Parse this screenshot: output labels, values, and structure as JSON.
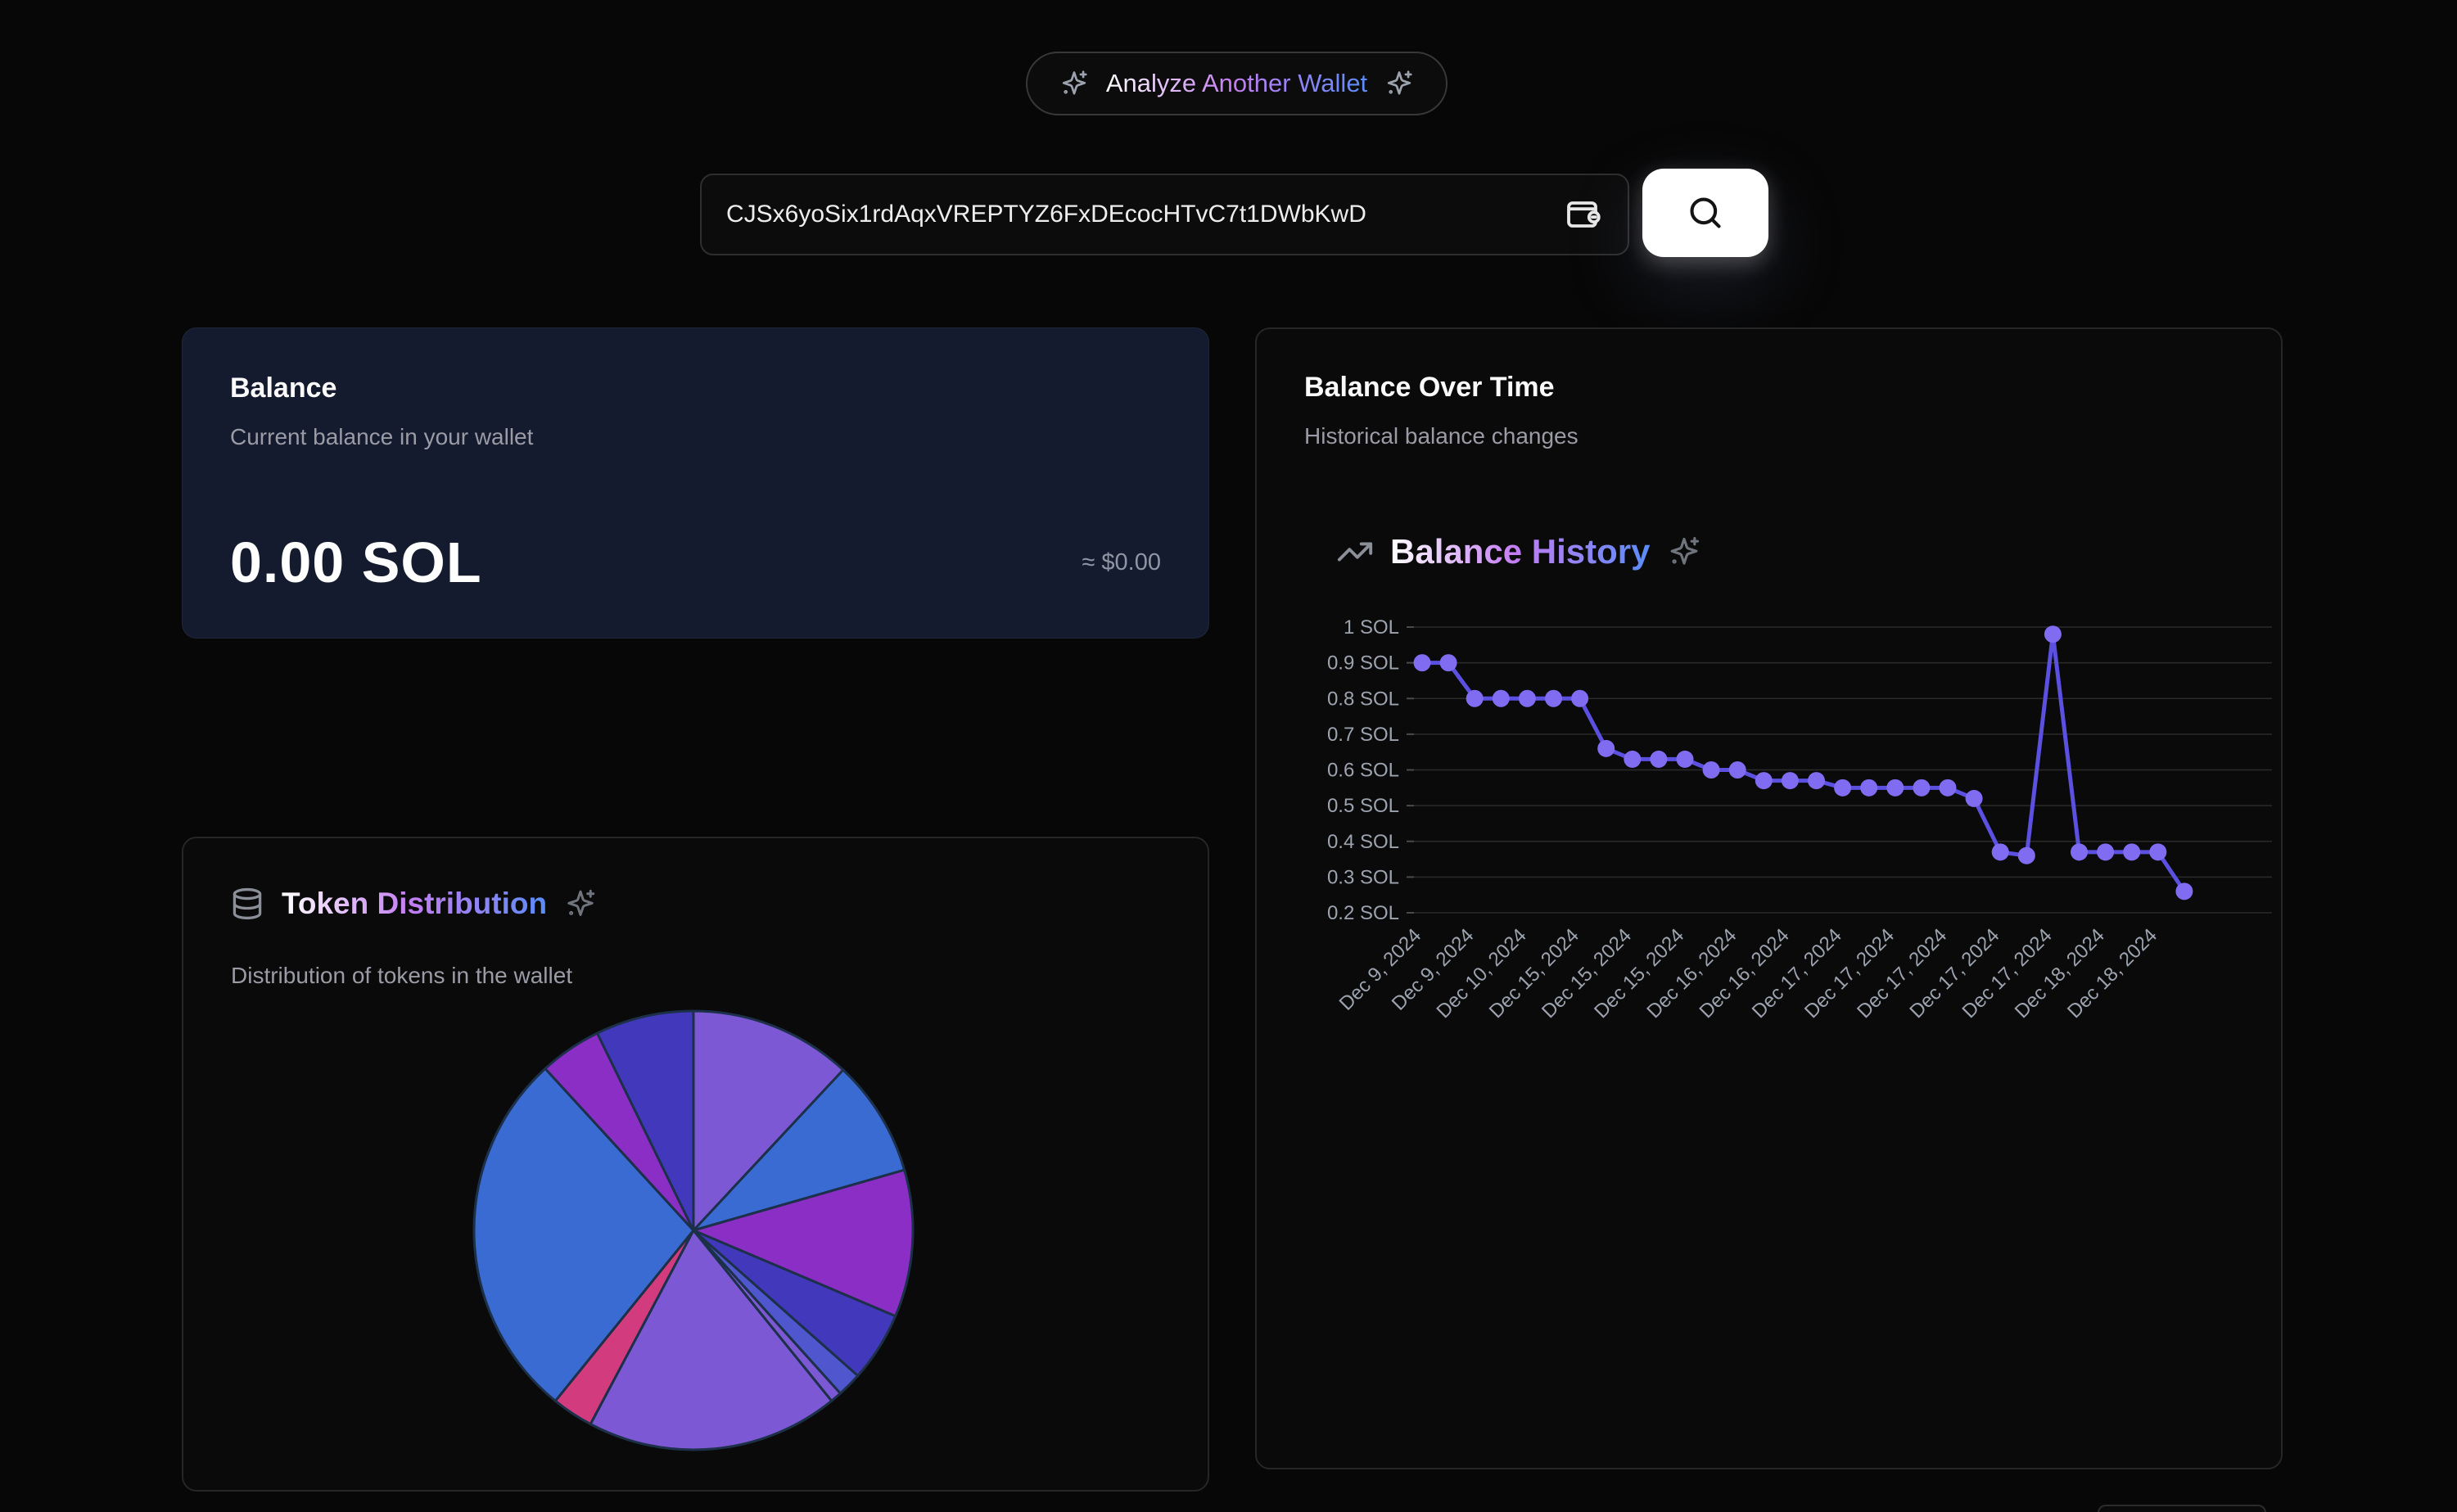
{
  "topbar": {
    "analyze_button_label": "Analyze Another Wallet",
    "left_icon": "sparkles-icon",
    "right_icon": "sparkles-icon"
  },
  "search": {
    "address_value": "CJSx6yoSix1rdAqxVREPTYZ6FxDEcocHTvC7t1DWbKwD",
    "field_icon": "wallet-icon",
    "button_icon": "search-icon"
  },
  "balance_card": {
    "title": "Balance",
    "subtitle": "Current balance in your wallet",
    "amount": "0.00 SOL",
    "usd_equiv": "≈ $0.00",
    "bg_color": "#141b2e"
  },
  "history_card": {
    "title": "Balance Over Time",
    "subtitle": "Historical balance changes",
    "chart_title": "Balance History",
    "chart_title_left_icon": "trending-up-icon",
    "chart_title_right_icon": "sparkles-icon"
  },
  "token_card": {
    "title": "Token Distribution",
    "subtitle": "Distribution of tokens in the wallet",
    "title_left_icon": "database-icon",
    "title_right_icon": "sparkles-icon"
  },
  "colors": {
    "page_bg": "#070707",
    "card_bg": "#0a0a0a",
    "card_border": "#262626",
    "accent_gradient": [
      "#ffffff",
      "#c47df2",
      "#5a8cf8"
    ],
    "muted_text": "#9b9ba6"
  },
  "chart_data": [
    {
      "type": "line",
      "title": "Balance History",
      "xlabel": "",
      "ylabel": "",
      "ylim": [
        0.2,
        1.0
      ],
      "grid": true,
      "legend": "none",
      "yticks": [
        {
          "value": 1,
          "label": "1 SOL"
        },
        {
          "value": 0.9,
          "label": "0.9 SOL"
        },
        {
          "value": 0.8,
          "label": "0.8 SOL"
        },
        {
          "value": 0.7,
          "label": "0.7 SOL"
        },
        {
          "value": 0.6,
          "label": "0.6 SOL"
        },
        {
          "value": 0.5,
          "label": "0.5 SOL"
        },
        {
          "value": 0.4,
          "label": "0.4 SOL"
        },
        {
          "value": 0.3,
          "label": "0.3 SOL"
        },
        {
          "value": 0.2,
          "label": "0.2 SOL"
        }
      ],
      "values": [
        0.9,
        0.9,
        0.8,
        0.8,
        0.8,
        0.8,
        0.8,
        0.66,
        0.63,
        0.63,
        0.63,
        0.6,
        0.6,
        0.57,
        0.57,
        0.57,
        0.55,
        0.55,
        0.55,
        0.55,
        0.55,
        0.52,
        0.37,
        0.36,
        0.98,
        0.37,
        0.37,
        0.37,
        0.37,
        0.26
      ],
      "x_tick_labels": [
        "Dec 9, 2024",
        "Dec 9, 2024",
        "Dec 10, 2024",
        "Dec 15, 2024",
        "Dec 15, 2024",
        "Dec 15, 2024",
        "Dec 16, 2024",
        "Dec 16, 2024",
        "Dec 17, 2024",
        "Dec 17, 2024",
        "Dec 17, 2024",
        "Dec 17, 2024",
        "Dec 17, 2024",
        "Dec 18, 2024",
        "Dec 18, 2024"
      ],
      "x_label_every_n_points": 2,
      "line_color": "#5b50e0",
      "dot_color": "#7f6cf1",
      "grid_color": "#2b2b2b",
      "tick_color": "#9ca3af"
    },
    {
      "type": "pie",
      "title": "Token Distribution",
      "legend": "none",
      "stroke_color": "#1d3049",
      "slices": [
        {
          "start_deg": 0,
          "end_deg": 43,
          "pct": 11.9,
          "color": "#7c58d4"
        },
        {
          "start_deg": 43,
          "end_deg": 74,
          "pct": 8.6,
          "color": "#3a6bd2"
        },
        {
          "start_deg": 74,
          "end_deg": 113,
          "pct": 10.8,
          "color": "#8a2ec5"
        },
        {
          "start_deg": 113,
          "end_deg": 131.5,
          "pct": 5.1,
          "color": "#4238bc"
        },
        {
          "start_deg": 131.5,
          "end_deg": 138,
          "pct": 1.8,
          "color": "#5057ce"
        },
        {
          "start_deg": 138,
          "end_deg": 141,
          "pct": 0.8,
          "color": "#7c58d4"
        },
        {
          "start_deg": 141,
          "end_deg": 208,
          "pct": 18.6,
          "color": "#7c58d4"
        },
        {
          "start_deg": 208,
          "end_deg": 219,
          "pct": 3.1,
          "color": "#d23c7e"
        },
        {
          "start_deg": 219,
          "end_deg": 317.5,
          "pct": 27.4,
          "color": "#3a6bd2"
        },
        {
          "start_deg": 317.5,
          "end_deg": 334,
          "pct": 4.6,
          "color": "#8a2ec5"
        },
        {
          "start_deg": 334,
          "end_deg": 360,
          "pct": 7.2,
          "color": "#4238bc"
        }
      ]
    }
  ]
}
